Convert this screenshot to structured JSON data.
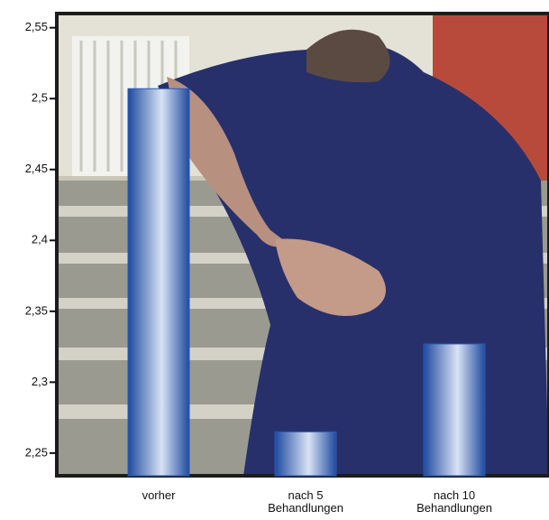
{
  "chart_data": {
    "type": "bar",
    "categories": [
      "vorher",
      "nach 5 Behandlungen",
      "nach 10 Behandlungen"
    ],
    "values": [
      2.507,
      2.265,
      2.327
    ],
    "color": "#2a58b0",
    "ylim": [
      2.234,
      2.56
    ],
    "yticks": [
      {
        "value": 2.25,
        "label": "2,25"
      },
      {
        "value": 2.3,
        "label": "2,3"
      },
      {
        "value": 2.35,
        "label": "2,35"
      },
      {
        "value": 2.4,
        "label": "2,4"
      },
      {
        "value": 2.45,
        "label": "2,45"
      },
      {
        "value": 2.5,
        "label": "2,5"
      },
      {
        "value": 2.55,
        "label": "2,55"
      }
    ]
  }
}
